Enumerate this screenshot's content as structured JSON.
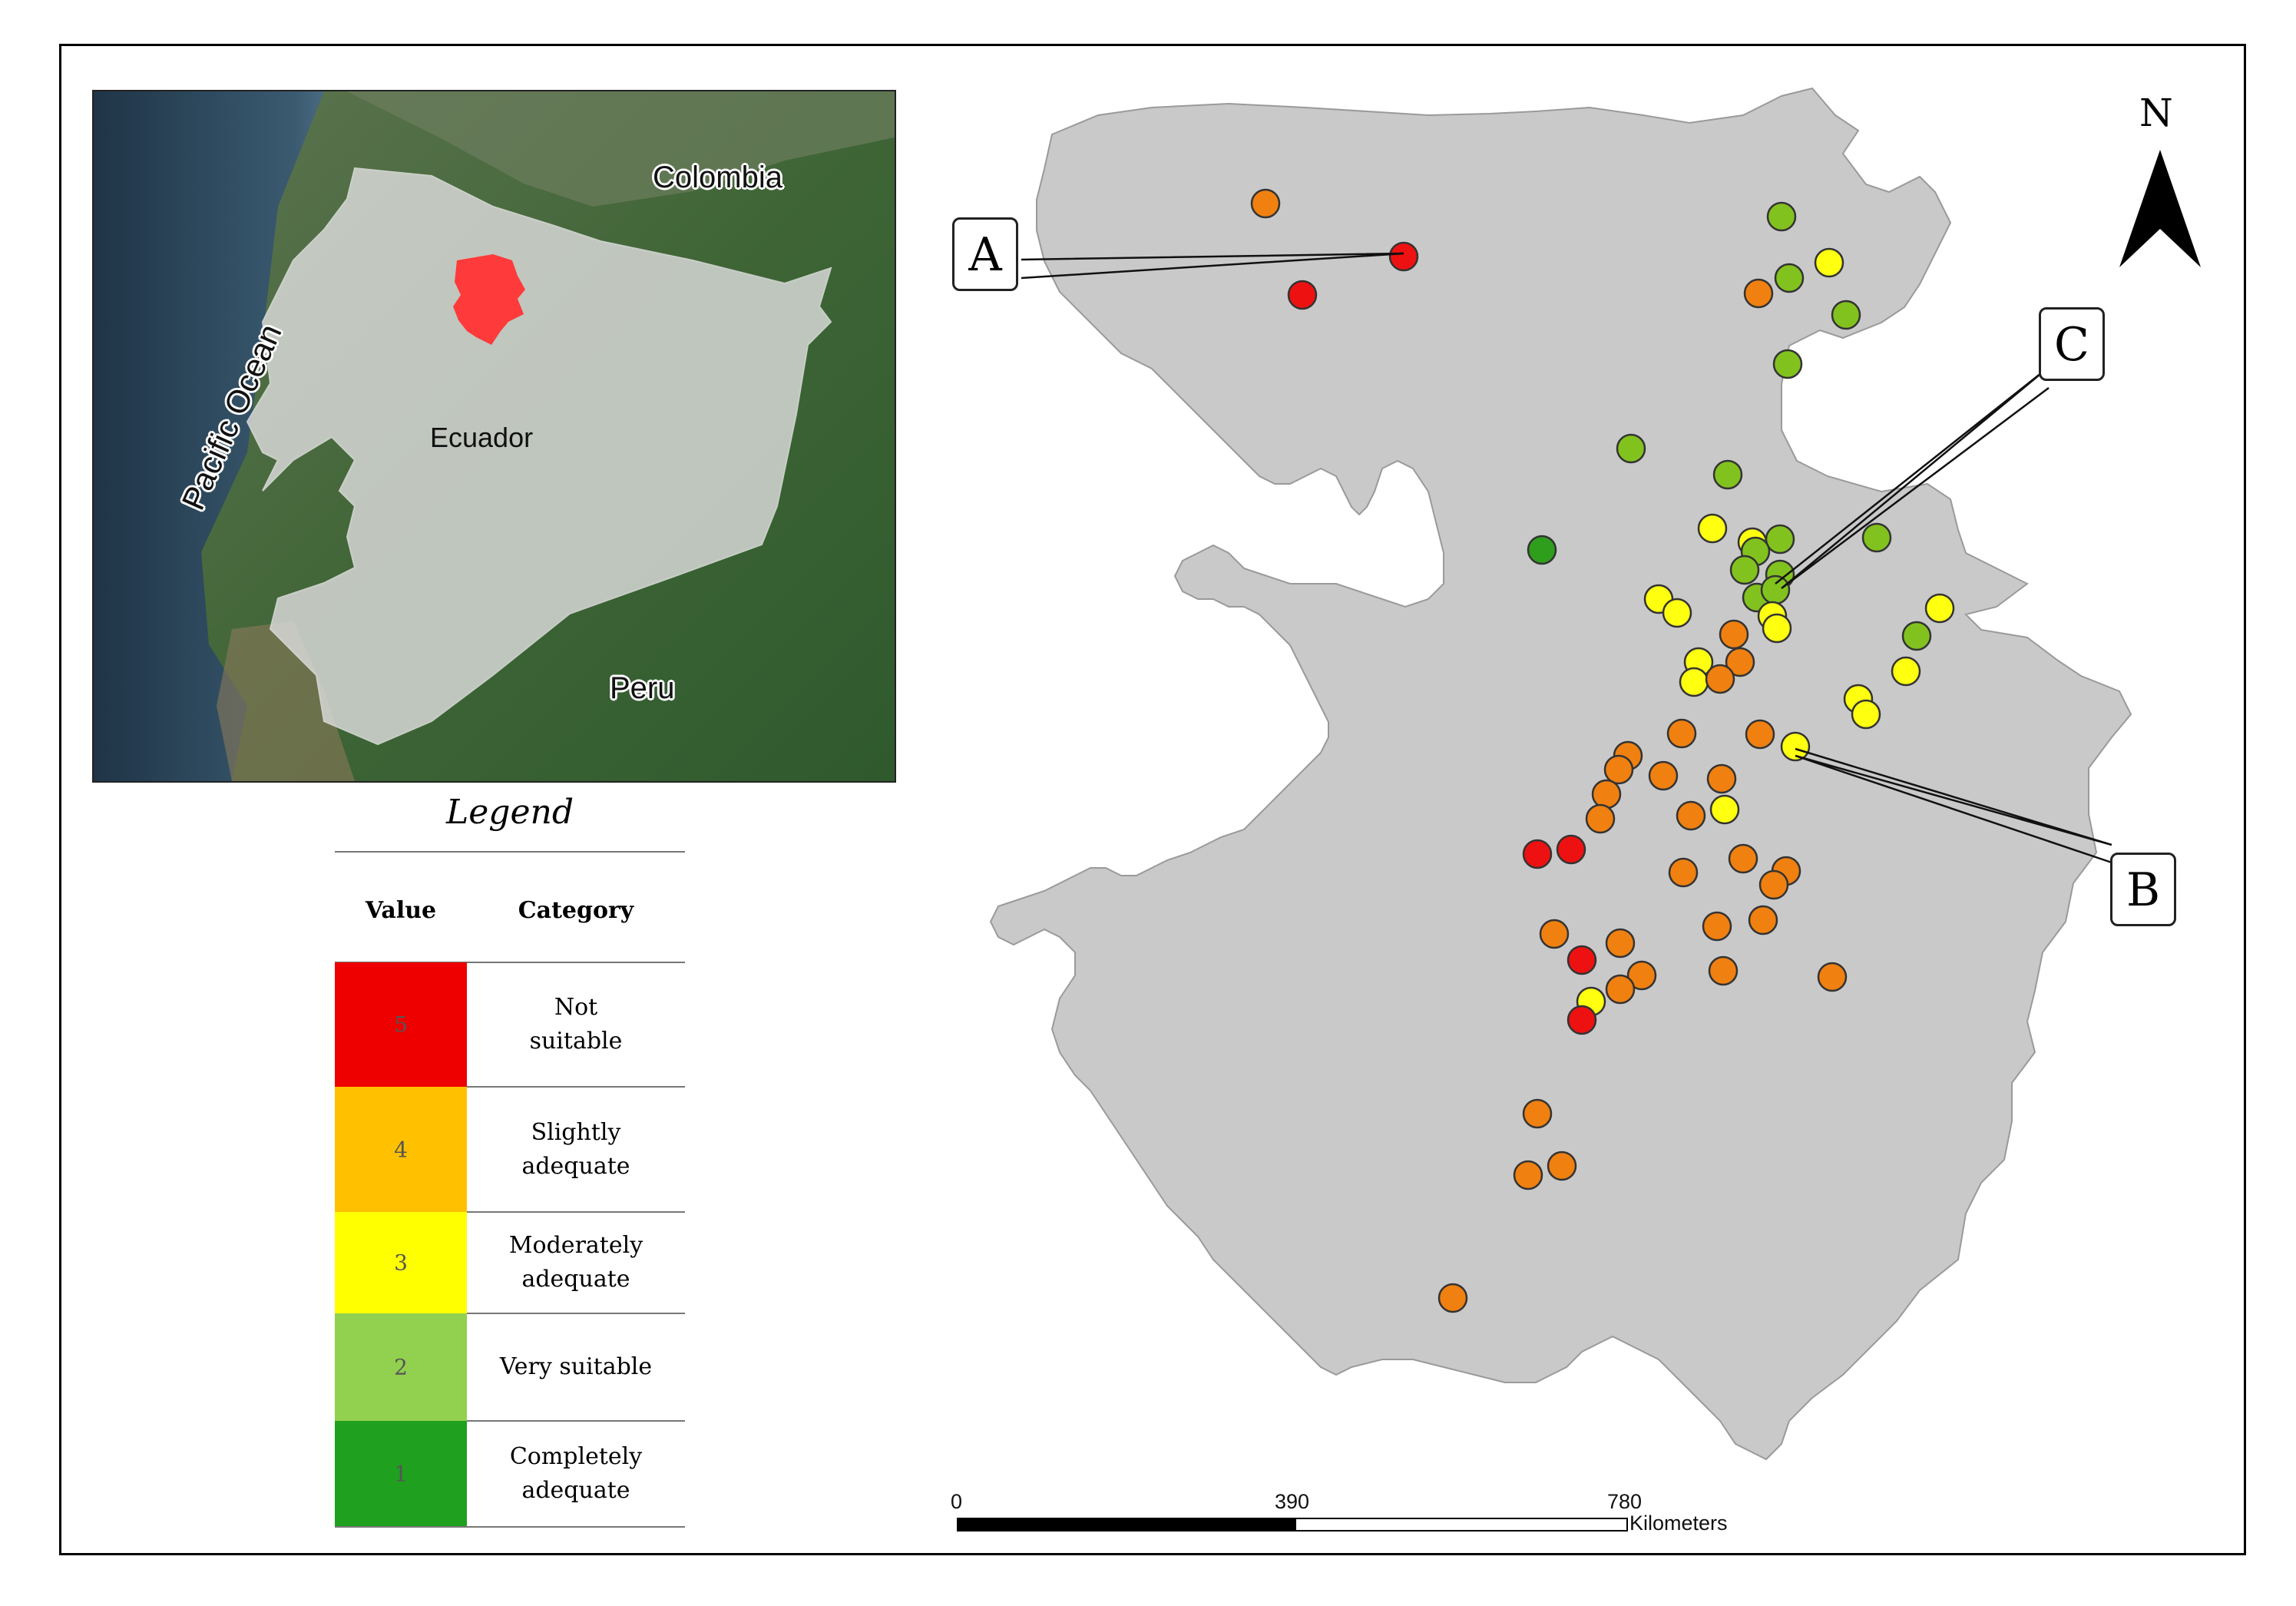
{
  "inset_map": {
    "labels": {
      "colombia": "Colombia",
      "ecuador": "Ecuador",
      "peru": "Peru",
      "ocean": "Pacific Ocean"
    }
  },
  "legend": {
    "title": "Legend",
    "headers": {
      "value": "Value",
      "category": "Category"
    },
    "rows": [
      {
        "value": "5",
        "category_lines": [
          "Not",
          "suitable"
        ],
        "color": "#ee0000"
      },
      {
        "value": "4",
        "category_lines": [
          "Slightly",
          "adequate"
        ],
        "color": "#ffc000"
      },
      {
        "value": "3",
        "category_lines": [
          "Moderately",
          "adequate"
        ],
        "color": "#ffff00"
      },
      {
        "value": "2",
        "category_lines": [
          "Very suitable"
        ],
        "color": "#92d050"
      },
      {
        "value": "1",
        "category_lines": [
          "Completely",
          "adequate"
        ],
        "color": "#1fa11f"
      }
    ]
  },
  "callouts": {
    "a": "A",
    "b": "B",
    "c": "C"
  },
  "north_arrow": {
    "label": "N"
  },
  "scale_bar": {
    "ticks": [
      "0",
      "390",
      "780"
    ],
    "unit": "Kilometers"
  },
  "point_colors": {
    "5": "#ee1111",
    "4": "#f08010",
    "3": "#ffff10",
    "2": "#82c21e",
    "1": "#2e9e1c"
  }
}
